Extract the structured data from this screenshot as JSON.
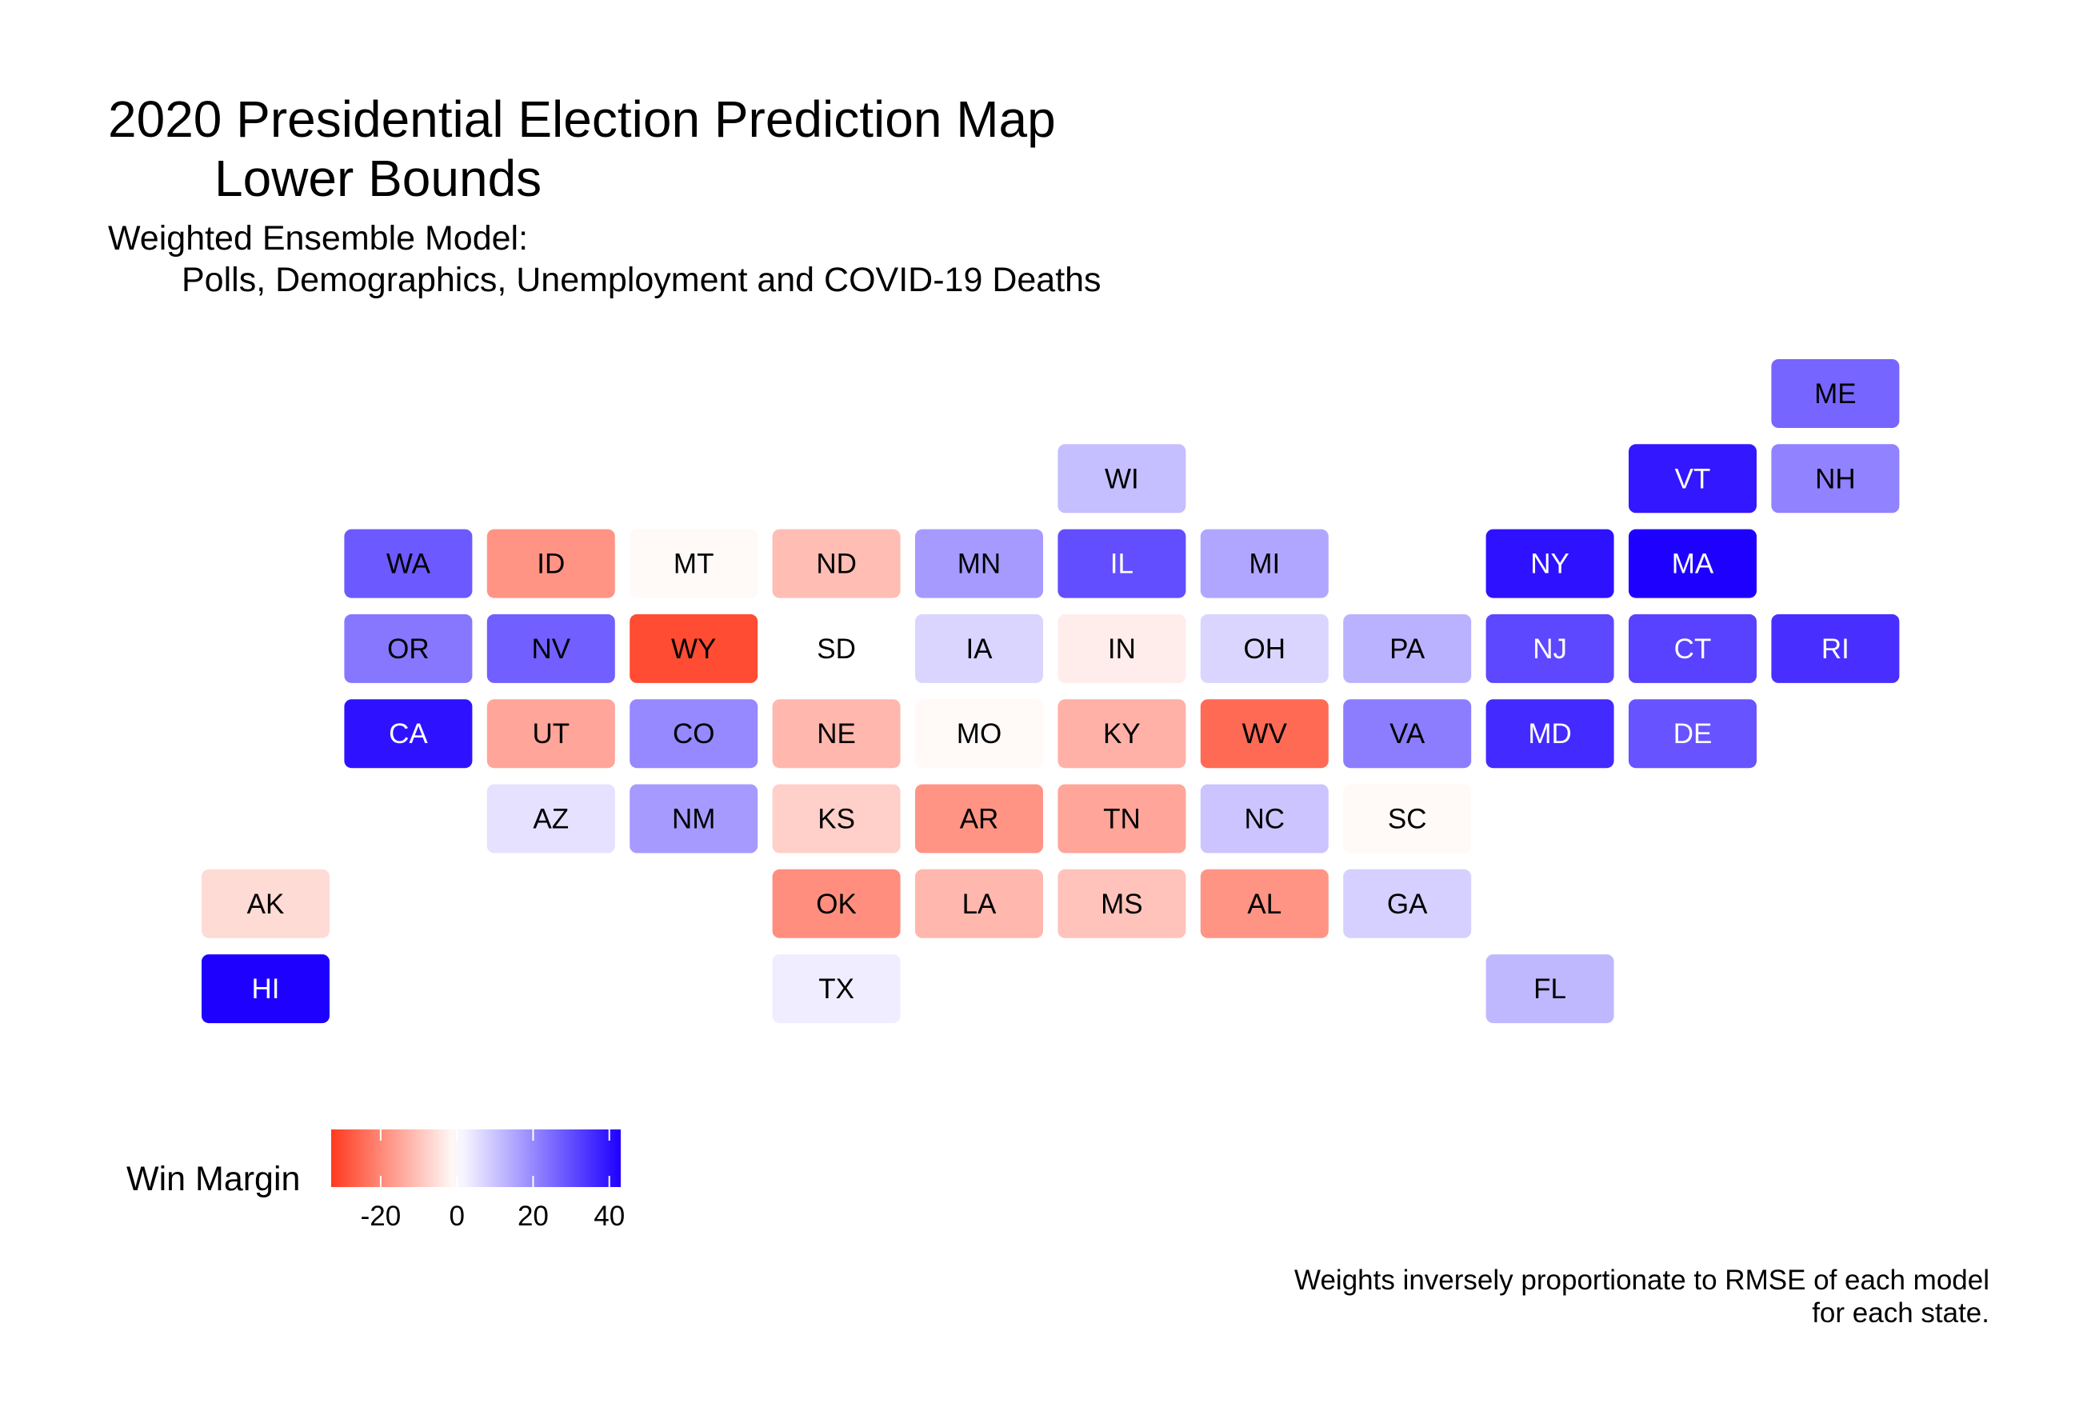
{
  "title": {
    "line1": "2020 Presidential Election Prediction Map",
    "line2": "Lower Bounds"
  },
  "subtitle": {
    "line1": "Weighted Ensemble Model:",
    "line2": "Polls, Demographics, Unemployment and COVID-19 Deaths"
  },
  "caption": {
    "line1": "Weights inversely proportionate to RMSE of each model",
    "line2": "for each state."
  },
  "colors": {
    "low": "#ff3a1f",
    "mid": "#ffffff",
    "high": "#1e00ff"
  },
  "chart_data": {
    "type": "heatmap",
    "legend": {
      "title": "Win Margin",
      "range": [
        -33,
        43
      ],
      "ticks": [
        -20,
        0,
        20,
        40
      ],
      "tick_labels": [
        "-20",
        "0",
        "20",
        "40"
      ],
      "position": "bottom-left"
    },
    "tiles": [
      {
        "state": "ME",
        "col": 11,
        "row": 0,
        "value": 26
      },
      {
        "state": "WI",
        "col": 6,
        "row": 1,
        "value": 11
      },
      {
        "state": "VT",
        "col": 10,
        "row": 1,
        "value": 39
      },
      {
        "state": "NH",
        "col": 11,
        "row": 1,
        "value": 21
      },
      {
        "state": "WA",
        "col": 1,
        "row": 2,
        "value": 28
      },
      {
        "state": "ID",
        "col": 2,
        "row": 2,
        "value": -18
      },
      {
        "state": "MT",
        "col": 3,
        "row": 2,
        "value": -1
      },
      {
        "state": "ND",
        "col": 4,
        "row": 2,
        "value": -11
      },
      {
        "state": "MN",
        "col": 5,
        "row": 2,
        "value": 17
      },
      {
        "state": "IL",
        "col": 6,
        "row": 2,
        "value": 30
      },
      {
        "state": "MI",
        "col": 7,
        "row": 2,
        "value": 15
      },
      {
        "state": "NY",
        "col": 9,
        "row": 2,
        "value": 40
      },
      {
        "state": "MA",
        "col": 10,
        "row": 2,
        "value": 43
      },
      {
        "state": "OR",
        "col": 1,
        "row": 3,
        "value": 23
      },
      {
        "state": "NV",
        "col": 2,
        "row": 3,
        "value": 27
      },
      {
        "state": "WY",
        "col": 3,
        "row": 3,
        "value": -30
      },
      {
        "state": "SD",
        "col": 4,
        "row": 3,
        "value": 0
      },
      {
        "state": "IA",
        "col": 5,
        "row": 3,
        "value": 7
      },
      {
        "state": "IN",
        "col": 6,
        "row": 3,
        "value": -3
      },
      {
        "state": "OH",
        "col": 7,
        "row": 3,
        "value": 7
      },
      {
        "state": "PA",
        "col": 8,
        "row": 3,
        "value": 13
      },
      {
        "state": "NJ",
        "col": 9,
        "row": 3,
        "value": 31
      },
      {
        "state": "CT",
        "col": 10,
        "row": 3,
        "value": 32
      },
      {
        "state": "RI",
        "col": 11,
        "row": 3,
        "value": 35
      },
      {
        "state": "CA",
        "col": 1,
        "row": 4,
        "value": 40
      },
      {
        "state": "UT",
        "col": 2,
        "row": 4,
        "value": -15
      },
      {
        "state": "CO",
        "col": 3,
        "row": 4,
        "value": 20
      },
      {
        "state": "NE",
        "col": 4,
        "row": 4,
        "value": -12
      },
      {
        "state": "MO",
        "col": 5,
        "row": 4,
        "value": -1
      },
      {
        "state": "KY",
        "col": 6,
        "row": 4,
        "value": -13
      },
      {
        "state": "WV",
        "col": 7,
        "row": 4,
        "value": -25
      },
      {
        "state": "VA",
        "col": 8,
        "row": 4,
        "value": 22
      },
      {
        "state": "MD",
        "col": 9,
        "row": 4,
        "value": 36
      },
      {
        "state": "DE",
        "col": 10,
        "row": 4,
        "value": 29
      },
      {
        "state": "AZ",
        "col": 2,
        "row": 5,
        "value": 5
      },
      {
        "state": "NM",
        "col": 3,
        "row": 5,
        "value": 17
      },
      {
        "state": "KS",
        "col": 4,
        "row": 5,
        "value": -8
      },
      {
        "state": "AR",
        "col": 5,
        "row": 5,
        "value": -18
      },
      {
        "state": "TN",
        "col": 6,
        "row": 5,
        "value": -15
      },
      {
        "state": "NC",
        "col": 7,
        "row": 5,
        "value": 10
      },
      {
        "state": "SC",
        "col": 8,
        "row": 5,
        "value": -1
      },
      {
        "state": "AK",
        "col": 0,
        "row": 6,
        "value": -6
      },
      {
        "state": "OK",
        "col": 4,
        "row": 6,
        "value": -19
      },
      {
        "state": "LA",
        "col": 5,
        "row": 6,
        "value": -12
      },
      {
        "state": "MS",
        "col": 6,
        "row": 6,
        "value": -10
      },
      {
        "state": "AL",
        "col": 7,
        "row": 6,
        "value": -18
      },
      {
        "state": "GA",
        "col": 8,
        "row": 6,
        "value": 8
      },
      {
        "state": "HI",
        "col": 0,
        "row": 7,
        "value": 46
      },
      {
        "state": "TX",
        "col": 4,
        "row": 7,
        "value": 3
      },
      {
        "state": "FL",
        "col": 9,
        "row": 7,
        "value": 12
      }
    ]
  }
}
